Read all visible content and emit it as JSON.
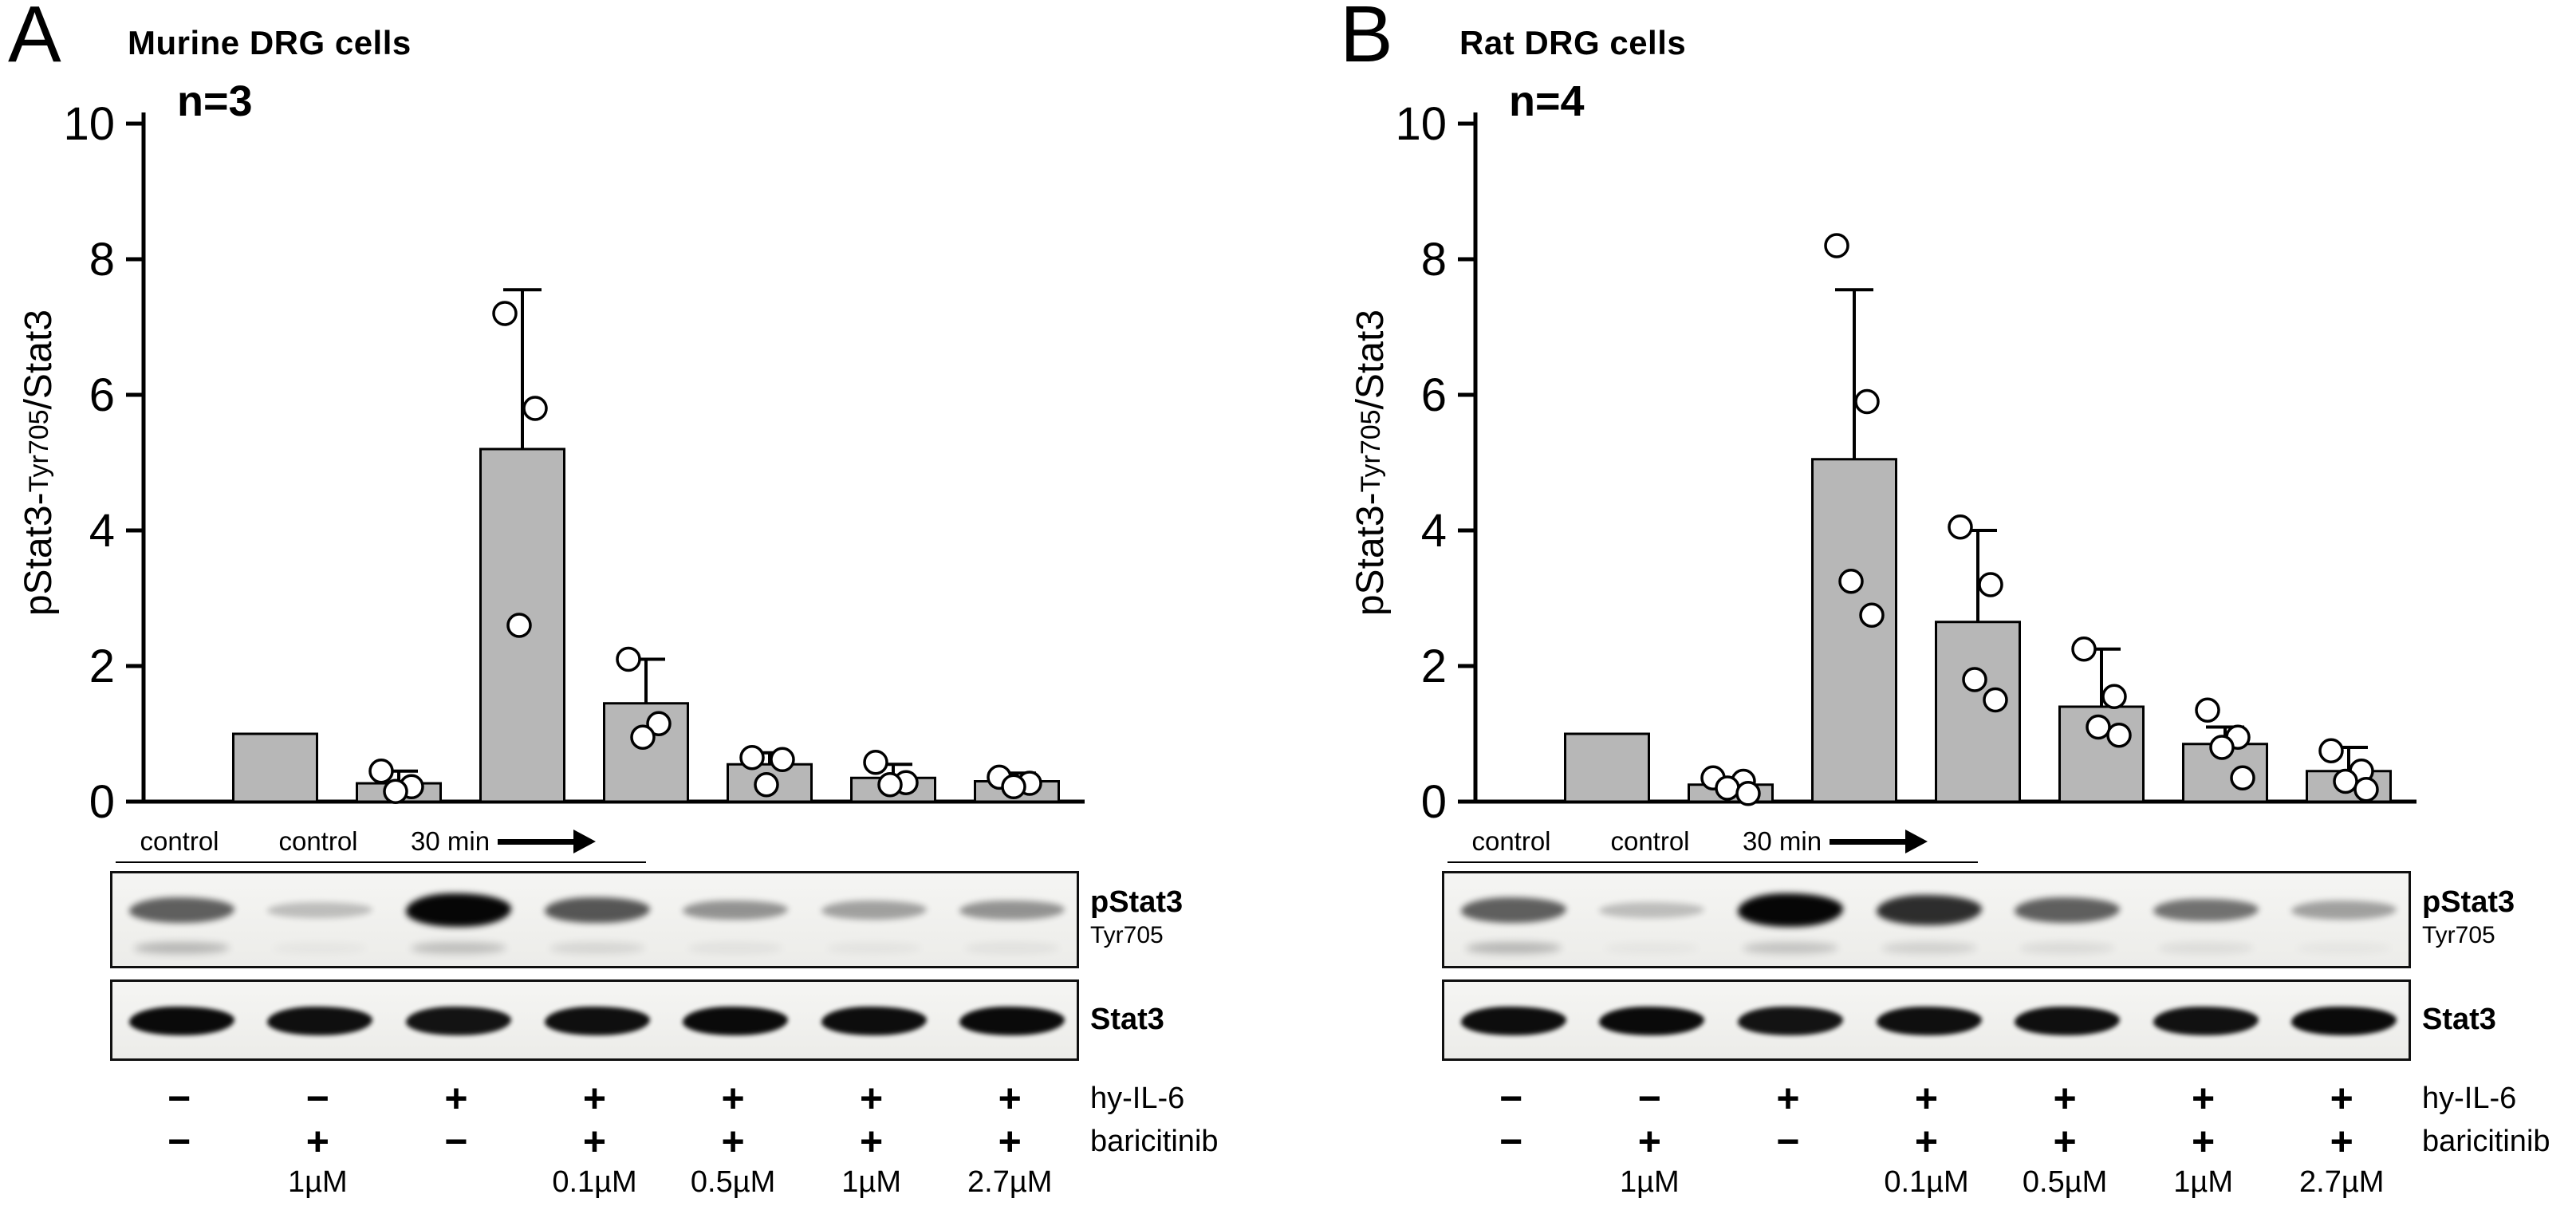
{
  "colors": {
    "bar_fill": "#b7b7b7",
    "bar_stroke": "#000000",
    "point_fill": "#ffffff",
    "axis": "#000000",
    "blot_background": "#f0f0ee",
    "band": "#060606"
  },
  "chart_data": [
    {
      "type": "bar",
      "panel": "A",
      "title": "Murine DRG cells",
      "n_annotation": "n=3",
      "ylabel": "pStat3-Tyr705/Stat3",
      "xlabel": "",
      "ylim": [
        0,
        10
      ],
      "yticks": [
        0,
        2,
        4,
        6,
        8,
        10
      ],
      "grid": false,
      "legend": "none",
      "categories": [
        "control",
        "baricitinib 1 µM",
        "hy-IL-6 30 min",
        "hy-IL-6 + baricitinib 0.1 µM",
        "hy-IL-6 + baricitinib 0.5 µM",
        "hy-IL-6 + baricitinib 1 µM",
        "hy-IL-6 + baricitinib 2.7 µM"
      ],
      "values": [
        1.0,
        0.27,
        5.2,
        1.45,
        0.55,
        0.35,
        0.3
      ],
      "errors_upper": [
        0,
        0.18,
        2.35,
        0.65,
        0.17,
        0.2,
        0.12
      ],
      "points": [
        [],
        [
          0.45,
          0.22,
          0.15
        ],
        [
          7.2,
          5.8,
          2.6
        ],
        [
          2.1,
          1.15,
          0.95
        ],
        [
          0.65,
          0.62,
          0.25
        ],
        [
          0.58,
          0.28,
          0.25
        ],
        [
          0.36,
          0.27,
          0.22
        ]
      ]
    },
    {
      "type": "bar",
      "panel": "B",
      "title": "Rat DRG cells",
      "n_annotation": "n=4",
      "ylabel": "pStat3-Tyr705/Stat3",
      "xlabel": "",
      "ylim": [
        0,
        10
      ],
      "yticks": [
        0,
        2,
        4,
        6,
        8,
        10
      ],
      "grid": false,
      "legend": "none",
      "categories": [
        "control",
        "baricitinib 1 µM",
        "hy-IL-6 30 min",
        "hy-IL-6 + baricitinib 0.1 µM",
        "hy-IL-6 + baricitinib 0.5 µM",
        "hy-IL-6 + baricitinib 1 µM",
        "hy-IL-6 + baricitinib 2.7 µM"
      ],
      "values": [
        1.0,
        0.25,
        5.05,
        2.65,
        1.4,
        0.85,
        0.45
      ],
      "errors_upper": [
        0,
        0.1,
        2.5,
        1.35,
        0.85,
        0.25,
        0.35
      ],
      "points": [
        [],
        [
          0.35,
          0.3,
          0.2,
          0.12
        ],
        [
          8.2,
          5.9,
          3.25,
          2.75
        ],
        [
          4.05,
          3.2,
          1.8,
          1.5
        ],
        [
          2.25,
          1.55,
          1.1,
          0.98
        ],
        [
          1.35,
          0.95,
          0.8,
          0.35
        ],
        [
          0.75,
          0.45,
          0.3,
          0.18
        ]
      ]
    }
  ],
  "panels": [
    {
      "letter": "A",
      "title": "Murine DRG cells",
      "n_label": "n=3",
      "ylabel_pre": "pStat3-",
      "ylabel_sub": "Tyr705",
      "ylabel_post": "/Stat3",
      "lane_labels": [
        "control",
        "control",
        "30 min"
      ],
      "blots": [
        {
          "label": "pStat3",
          "sublabel": "Tyr705",
          "bands": [
            0.55,
            0.07,
            1.0,
            0.6,
            0.28,
            0.22,
            0.28
          ],
          "bands_lower": [
            0.35,
            0.04,
            0.3,
            0.15,
            0.08,
            0.06,
            0.08
          ]
        },
        {
          "label": "Stat3",
          "sublabel": "",
          "bands": [
            0.95,
            0.9,
            0.85,
            0.9,
            0.95,
            0.92,
            0.95
          ],
          "bands_lower": []
        }
      ],
      "treatment_rows": [
        {
          "label": "hy-IL-6",
          "signs": [
            "−",
            "−",
            "+",
            "+",
            "+",
            "+",
            "+"
          ]
        },
        {
          "label": "baricitinib",
          "signs": [
            "−",
            "+",
            "−",
            "+",
            "+",
            "+",
            "+"
          ]
        }
      ],
      "dose_labels": [
        "",
        "1µM",
        "",
        "0.1µM",
        "0.5µM",
        "1µM",
        "2.7µM"
      ]
    },
    {
      "letter": "B",
      "title": "Rat DRG cells",
      "n_label": "n=4",
      "ylabel_pre": "pStat3-",
      "ylabel_sub": "Tyr705",
      "ylabel_post": "/Stat3",
      "lane_labels": [
        "control",
        "control",
        "30 min"
      ],
      "blots": [
        {
          "label": "pStat3",
          "sublabel": "Tyr705",
          "bands": [
            0.55,
            0.07,
            1.0,
            0.8,
            0.55,
            0.45,
            0.22
          ],
          "bands_lower": [
            0.35,
            0.04,
            0.28,
            0.18,
            0.12,
            0.1,
            0.05
          ]
        },
        {
          "label": "Stat3",
          "sublabel": "",
          "bands": [
            0.92,
            0.95,
            0.85,
            0.9,
            0.9,
            0.88,
            0.95
          ],
          "bands_lower": []
        }
      ],
      "treatment_rows": [
        {
          "label": "hy-IL-6",
          "signs": [
            "−",
            "−",
            "+",
            "+",
            "+",
            "+",
            "+"
          ]
        },
        {
          "label": "baricitinib",
          "signs": [
            "−",
            "+",
            "−",
            "+",
            "+",
            "+",
            "+"
          ]
        }
      ],
      "dose_labels": [
        "",
        "1µM",
        "",
        "0.1µM",
        "0.5µM",
        "1µM",
        "2.7µM"
      ]
    }
  ]
}
